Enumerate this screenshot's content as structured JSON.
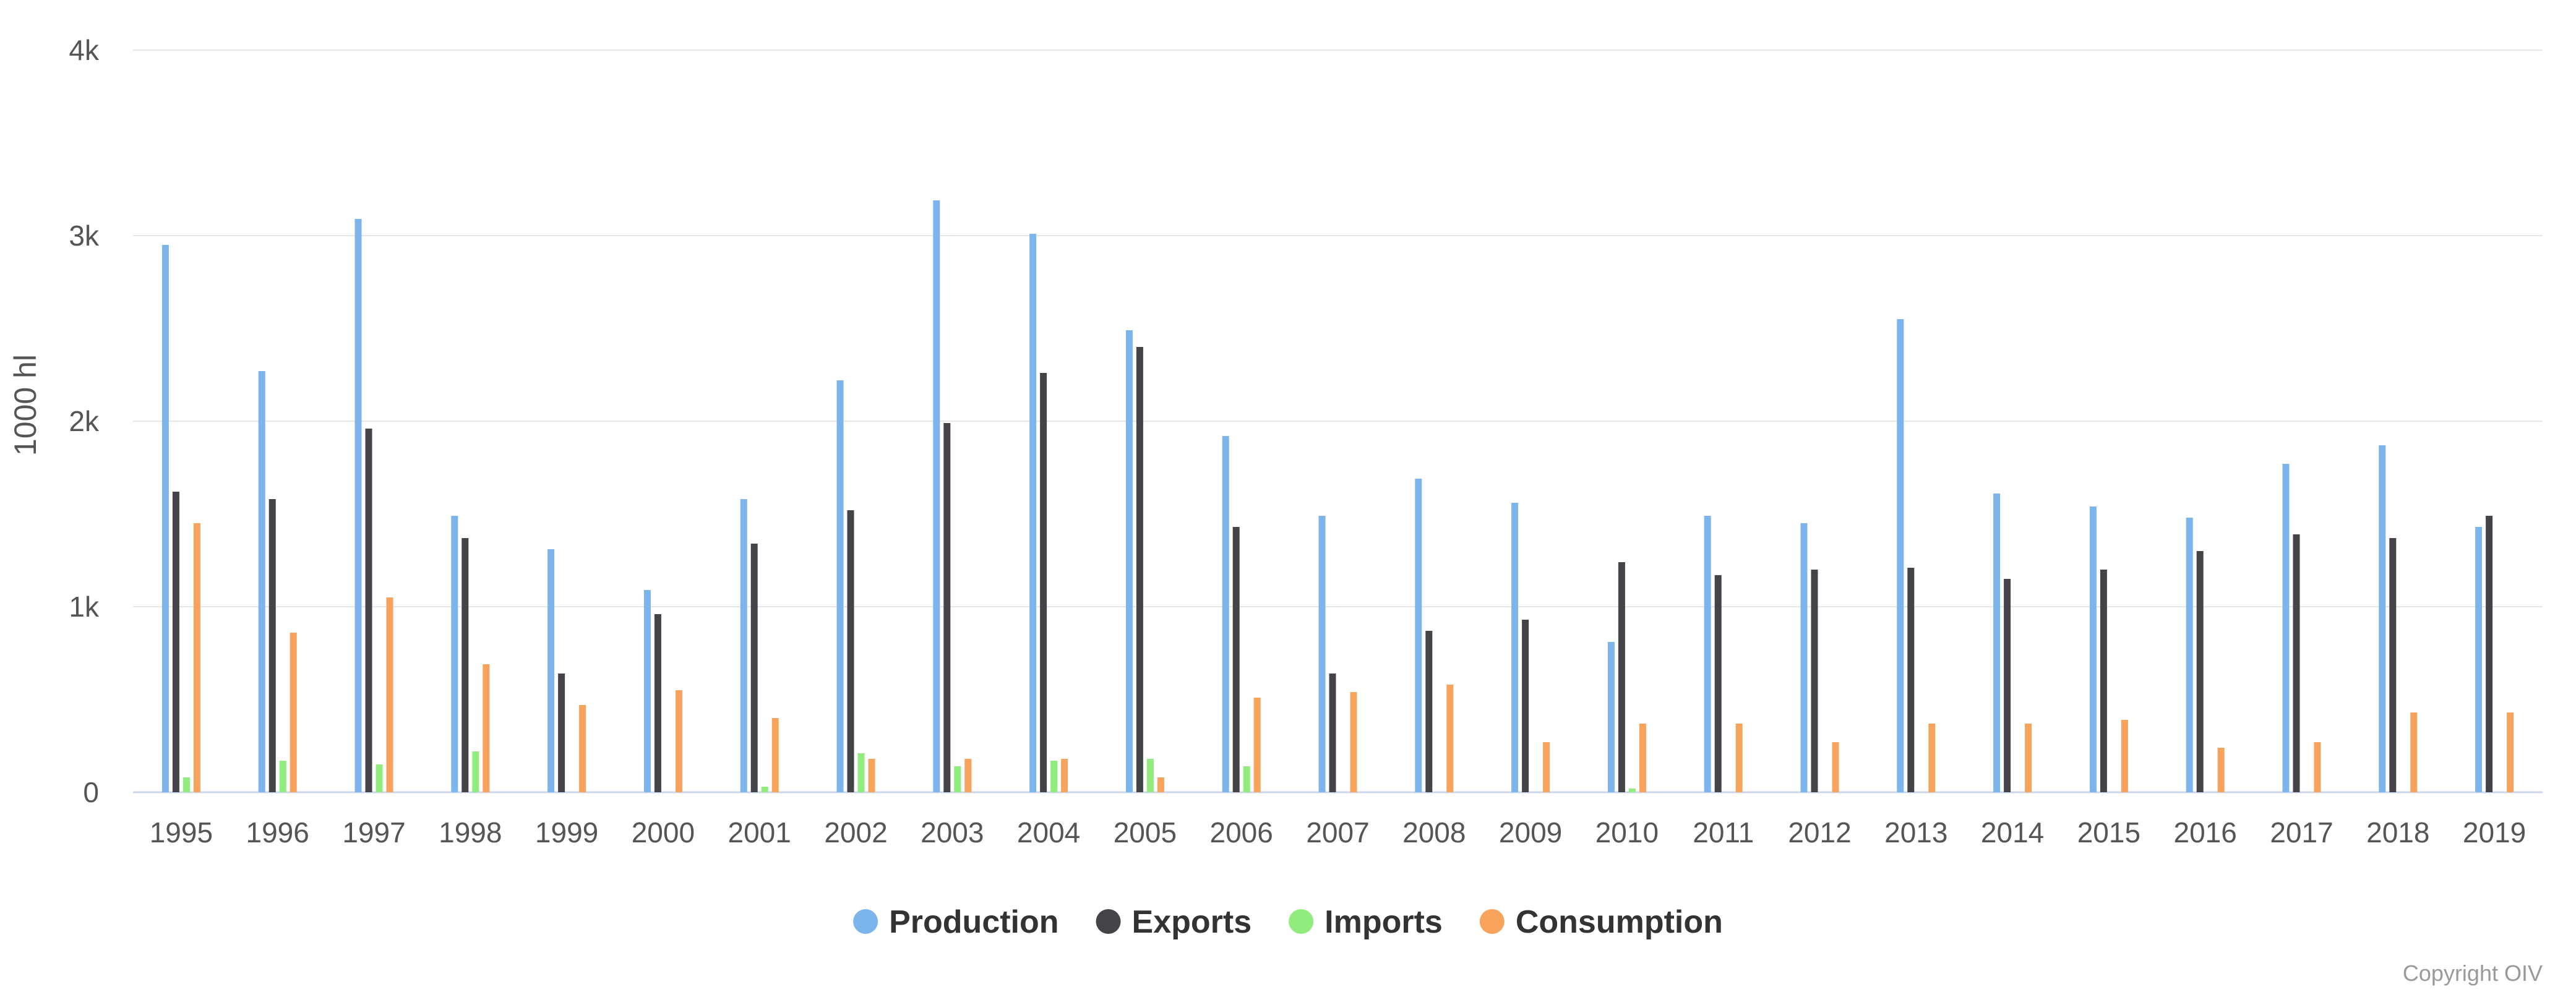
{
  "chart_data": {
    "type": "bar",
    "title": "",
    "xlabel": "",
    "ylabel": "1000 hl",
    "ylim": [
      0,
      4000
    ],
    "y_ticks": [
      0,
      1000,
      2000,
      3000,
      4000
    ],
    "y_tick_labels": [
      "0",
      "1k",
      "2k",
      "3k",
      "4k"
    ],
    "grid": true,
    "legend_position": "bottom-center",
    "categories": [
      "1995",
      "1996",
      "1997",
      "1998",
      "1999",
      "2000",
      "2001",
      "2002",
      "2003",
      "2004",
      "2005",
      "2006",
      "2007",
      "2008",
      "2009",
      "2010",
      "2011",
      "2012",
      "2013",
      "2014",
      "2015",
      "2016",
      "2017",
      "2018",
      "2019"
    ],
    "series": [
      {
        "name": "Production",
        "color": "#7cb5ec",
        "values": [
          2950,
          2270,
          3090,
          1490,
          1310,
          1090,
          1580,
          2220,
          3190,
          3010,
          2490,
          1920,
          1490,
          1690,
          1560,
          810,
          1490,
          1450,
          2550,
          1610,
          1540,
          1480,
          1770,
          1870,
          1430
        ]
      },
      {
        "name": "Exports",
        "color": "#434348",
        "values": [
          1620,
          1580,
          1960,
          1370,
          640,
          960,
          1340,
          1520,
          1990,
          2260,
          2400,
          1430,
          640,
          870,
          930,
          1240,
          1170,
          1200,
          1210,
          1150,
          1200,
          1300,
          1390,
          1370,
          1490
        ]
      },
      {
        "name": "Imports",
        "color": "#90ed7d",
        "values": [
          80,
          170,
          150,
          220,
          0,
          0,
          30,
          210,
          140,
          170,
          180,
          140,
          0,
          0,
          0,
          20,
          0,
          0,
          0,
          0,
          0,
          0,
          0,
          0,
          0
        ]
      },
      {
        "name": "Consumption",
        "color": "#f7a35c",
        "values": [
          1450,
          860,
          1050,
          690,
          470,
          550,
          400,
          180,
          180,
          180,
          80,
          510,
          540,
          580,
          270,
          370,
          370,
          270,
          370,
          370,
          390,
          240,
          270,
          430,
          430
        ]
      }
    ],
    "credits": "Copyright OIV"
  }
}
